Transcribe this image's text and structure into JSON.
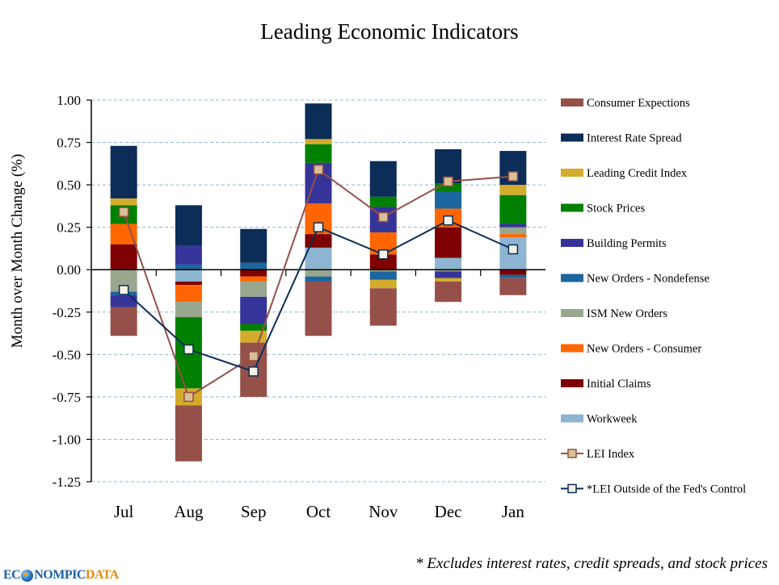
{
  "chart_data": {
    "type": "bar",
    "subtype": "stacked-bar-with-lines",
    "title": "Leading Economic Indicators",
    "xlabel": "",
    "ylabel": "Month over Month Change (%)",
    "ylim": [
      -1.25,
      1.0
    ],
    "yticks": [
      1.0,
      0.75,
      0.5,
      0.25,
      0.0,
      -0.25,
      -0.5,
      -0.75,
      -1.0,
      -1.25
    ],
    "ytick_labels": [
      "1.00",
      "0.75",
      "0.50",
      "0.25",
      "0.00",
      "-0.25",
      "-0.50",
      "-0.75",
      "-1.00",
      "-1.25"
    ],
    "grid": "horizontal dashed",
    "legend_position": "right",
    "categories": [
      "Jul",
      "Aug",
      "Sep",
      "Oct",
      "Nov",
      "Dec",
      "Jan"
    ],
    "series": [
      {
        "name": "Workweek",
        "color": "#8db4d0",
        "values": [
          0.0,
          -0.07,
          0.0,
          0.13,
          0.0,
          0.07,
          0.19
        ]
      },
      {
        "name": "Initial Claims",
        "color": "#7f0000",
        "values": [
          0.15,
          -0.02,
          -0.04,
          0.08,
          0.09,
          0.18,
          -0.03
        ]
      },
      {
        "name": "New Orders - Consumer",
        "color": "#ff6600",
        "values": [
          0.12,
          -0.1,
          -0.03,
          0.18,
          0.13,
          0.11,
          0.02
        ]
      },
      {
        "name": "ISM New Orders",
        "color": "#98a78e",
        "values": [
          -0.13,
          -0.09,
          -0.09,
          -0.04,
          -0.01,
          -0.01,
          0.04
        ]
      },
      {
        "name": "New Orders - Nondefense",
        "color": "#1b669f",
        "values": [
          -0.02,
          0.03,
          0.04,
          -0.03,
          -0.05,
          0.1,
          -0.02
        ]
      },
      {
        "name": "Building Permits",
        "color": "#373499",
        "values": [
          -0.07,
          0.11,
          -0.16,
          0.24,
          0.15,
          -0.04,
          0.02
        ]
      },
      {
        "name": "Stock Prices",
        "color": "#008000",
        "values": [
          0.11,
          -0.42,
          -0.04,
          0.11,
          0.06,
          0.05,
          0.17
        ]
      },
      {
        "name": "Leading Credit Index",
        "color": "#d4ac2b",
        "values": [
          0.04,
          -0.1,
          -0.07,
          0.03,
          -0.05,
          -0.02,
          0.06
        ]
      },
      {
        "name": "Interest Rate Spread",
        "color": "#0b2d57",
        "values": [
          0.31,
          0.24,
          0.2,
          0.21,
          0.21,
          0.2,
          0.2
        ]
      },
      {
        "name": "Consumer Expections",
        "color": "#955049",
        "values": [
          -0.17,
          -0.33,
          -0.32,
          -0.32,
          -0.22,
          -0.12,
          -0.1
        ]
      }
    ],
    "lines": [
      {
        "name": "LEI Index",
        "color": "#955049",
        "marker_fill": "#d9bf95",
        "values": [
          0.34,
          -0.75,
          -0.51,
          0.59,
          0.31,
          0.52,
          0.55
        ]
      },
      {
        "name": "*LEI Outside of the Fed's Control",
        "color": "#0b2d57",
        "marker_fill": "#f3f1e6",
        "values": [
          -0.12,
          -0.47,
          -0.6,
          0.25,
          0.09,
          0.29,
          0.12
        ]
      }
    ],
    "legend": [
      {
        "name": "Consumer Expections",
        "kind": "bar",
        "color": "#955049"
      },
      {
        "name": "Interest Rate Spread",
        "kind": "bar",
        "color": "#0b2d57"
      },
      {
        "name": "Leading Credit Index",
        "kind": "bar",
        "color": "#d4ac2b"
      },
      {
        "name": "Stock Prices",
        "kind": "bar",
        "color": "#008000"
      },
      {
        "name": "Building Permits",
        "kind": "bar",
        "color": "#373499"
      },
      {
        "name": "New Orders - Nondefense",
        "kind": "bar",
        "color": "#1b669f"
      },
      {
        "name": "ISM New Orders",
        "kind": "bar",
        "color": "#98a78e"
      },
      {
        "name": "New Orders - Consumer",
        "kind": "bar",
        "color": "#ff6600"
      },
      {
        "name": "Initial Claims",
        "kind": "bar",
        "color": "#7f0000"
      },
      {
        "name": "Workweek",
        "kind": "bar",
        "color": "#8db4d0"
      },
      {
        "name": "LEI Index",
        "kind": "line",
        "color": "#955049",
        "marker_fill": "#d9bf95"
      },
      {
        "name": "*LEI Outside of the Fed's Control",
        "kind": "line",
        "color": "#0b2d57",
        "marker_fill": "#f3f1e6"
      }
    ],
    "footnote": "* Excludes interest rates, credit spreads, and stock prices"
  },
  "branding": {
    "logo_part1": "EC",
    "logo_part2": "NOMPIC",
    "logo_part3": "DATA",
    "logo_icon": "globe-icon"
  }
}
